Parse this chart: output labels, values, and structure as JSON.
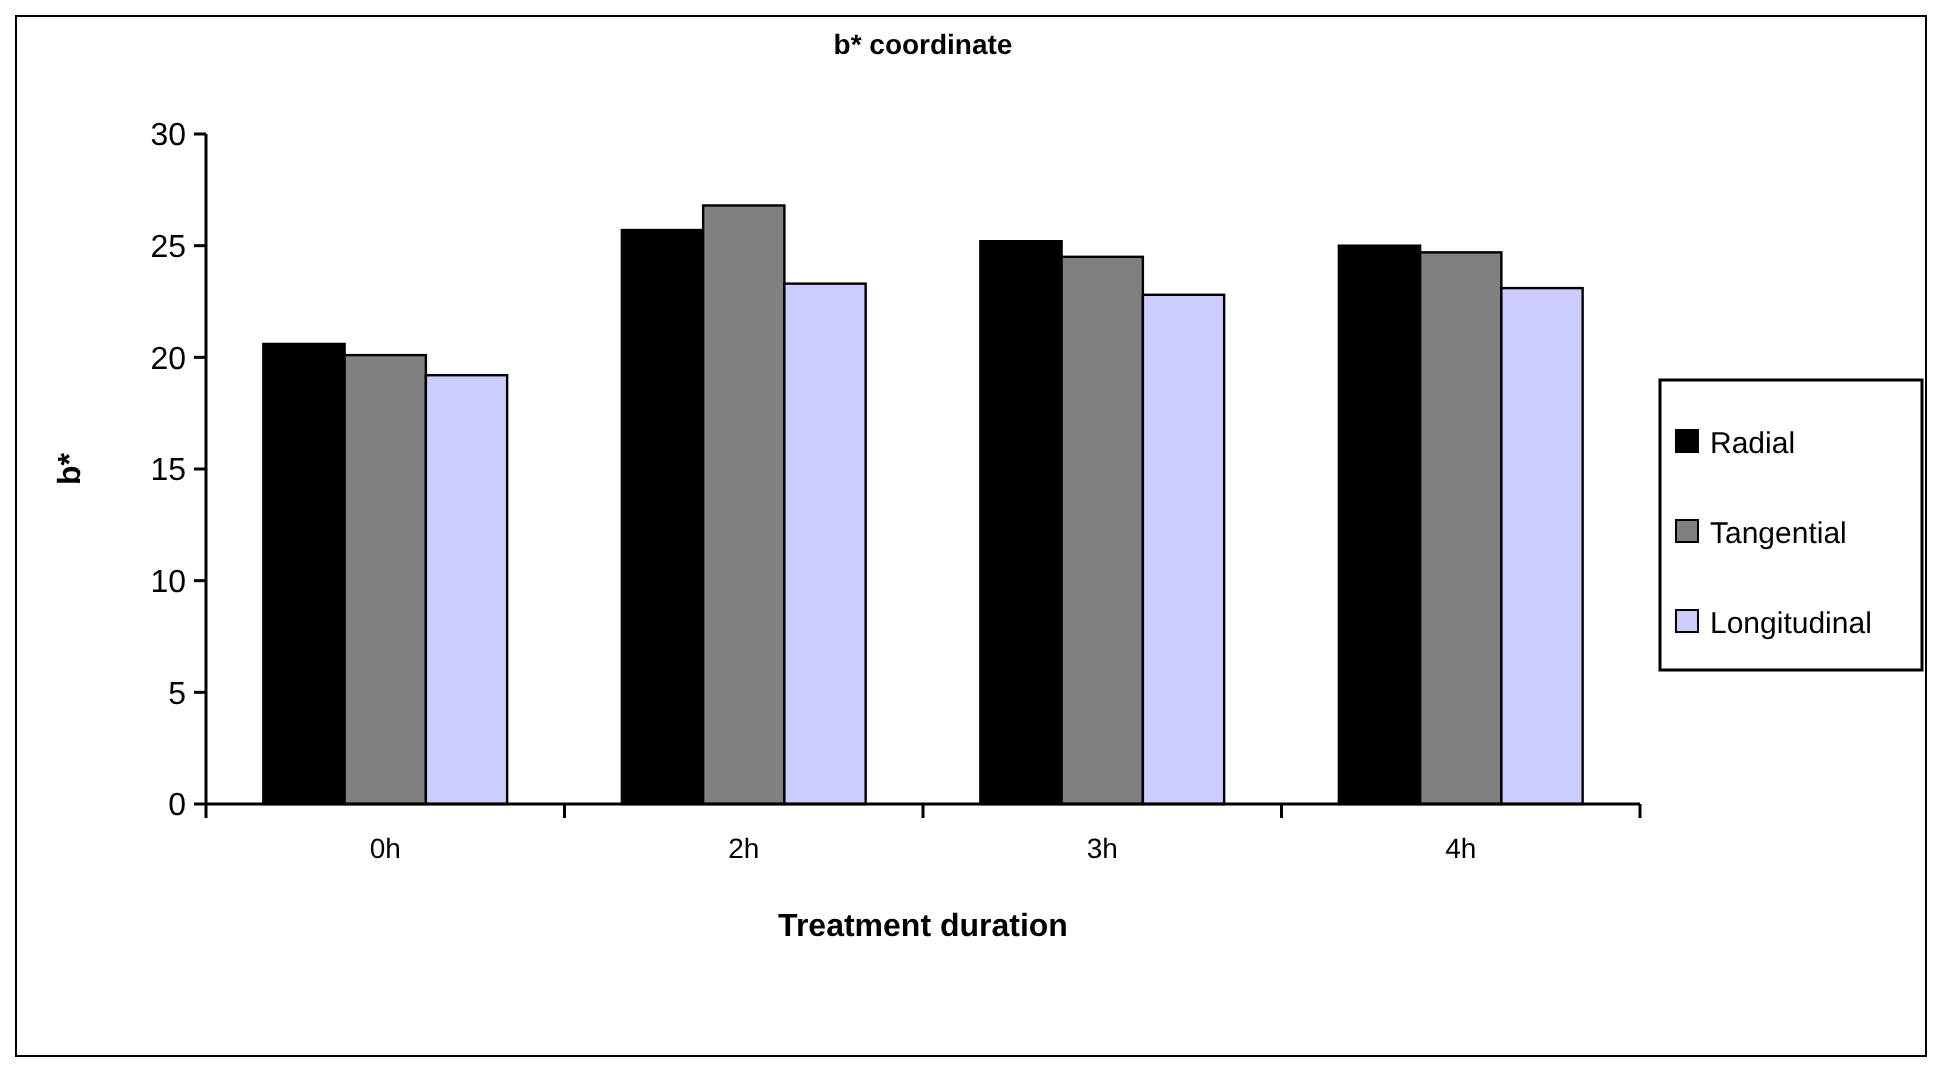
{
  "chart_data": {
    "type": "bar",
    "title": "b* coordinate",
    "xlabel": "Treatment duration",
    "ylabel": "b*",
    "categories": [
      "0h",
      "2h",
      "3h",
      "4h"
    ],
    "series": [
      {
        "name": "Radial",
        "color": "#000000",
        "values": [
          20.6,
          25.7,
          25.2,
          25.0
        ]
      },
      {
        "name": "Tangential",
        "color": "#808080",
        "values": [
          20.1,
          26.8,
          24.5,
          24.7
        ]
      },
      {
        "name": "Longitudinal",
        "color": "#ccccff",
        "values": [
          19.2,
          23.3,
          22.8,
          23.1
        ]
      }
    ],
    "ylim": [
      0,
      30
    ],
    "yticks": [
      0,
      5,
      10,
      15,
      20,
      25,
      30
    ],
    "grid": false,
    "legend": "right"
  }
}
